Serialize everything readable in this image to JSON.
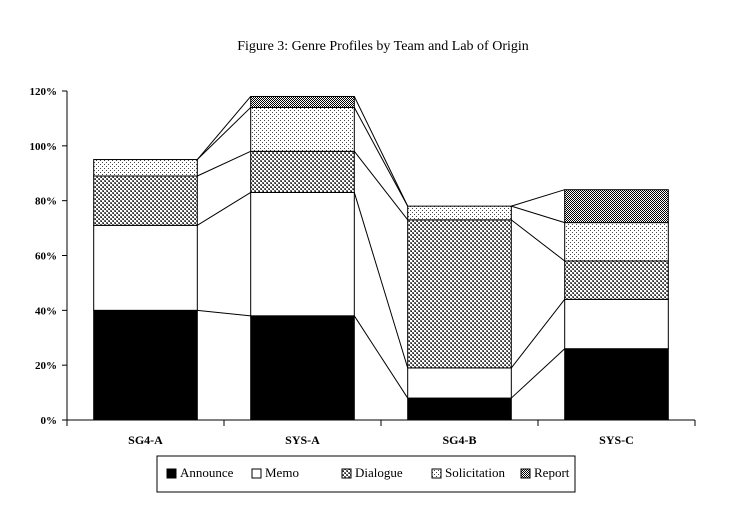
{
  "chart_data": {
    "type": "bar",
    "stacked": true,
    "title": "Figure 3: Genre Profiles by Team and Lab of Origin",
    "xlabel": "",
    "ylabel": "",
    "categories": [
      "SG4-A",
      "SYS-A",
      "SG4-B",
      "SYS-C"
    ],
    "ylim": [
      0,
      120
    ],
    "yticks": [
      "0%",
      "20%",
      "40%",
      "60%",
      "80%",
      "100%",
      "120%"
    ],
    "series": [
      {
        "name": "Announce",
        "pattern": "solid-black",
        "values": [
          40,
          38,
          8,
          26
        ]
      },
      {
        "name": "Memo",
        "pattern": "white",
        "values": [
          31,
          45,
          11,
          18
        ]
      },
      {
        "name": "Dialogue",
        "pattern": "crosshatch",
        "values": [
          18,
          15,
          54,
          14
        ]
      },
      {
        "name": "Solicitation",
        "pattern": "dots",
        "values": [
          6,
          16,
          5,
          14
        ]
      },
      {
        "name": "Report",
        "pattern": "dense-check",
        "values": [
          0,
          4,
          0,
          12
        ]
      }
    ],
    "connector_lines": true,
    "legend_position": "bottom",
    "grid": false
  }
}
